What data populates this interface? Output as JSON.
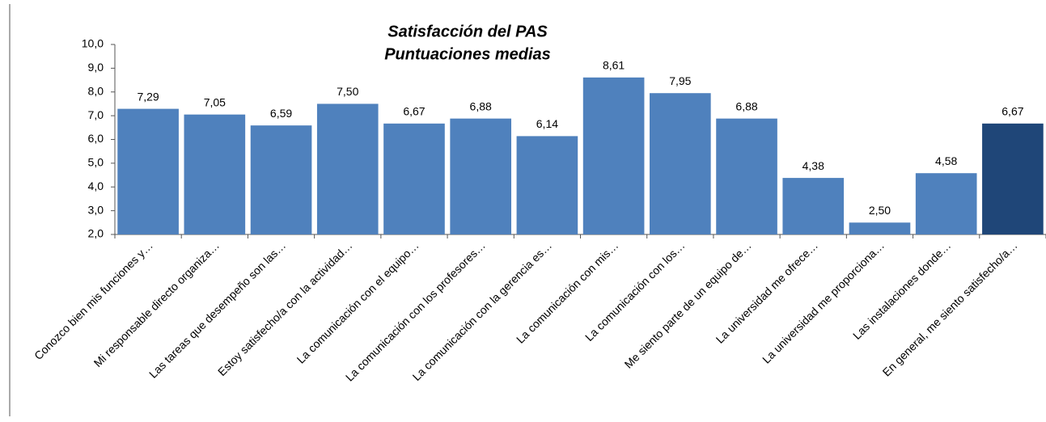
{
  "chart_data": {
    "type": "bar",
    "title": "Satisfacción del PAS",
    "subtitle": "Puntuaciones medias",
    "categories": [
      "Conozco bien mis funciones y…",
      "Mi responsable directo organiza…",
      "Las tareas que desempeño son las…",
      "Estoy satisfecho/a con la actividad…",
      "La comunicación con el equipo…",
      "La comunicación con los profesores…",
      "La comunicación con la gerencia es…",
      "La comunicación con mis…",
      "La comunicación con los…",
      "Me siento parte de un equipo de…",
      "La universidad me ofrece…",
      "La universidad me proporciona…",
      "Las instalaciones donde…",
      "En general, me siento satisfecho/a…"
    ],
    "values": [
      7.29,
      7.05,
      6.59,
      7.5,
      6.67,
      6.88,
      6.14,
      8.61,
      7.95,
      6.88,
      4.38,
      2.5,
      4.58,
      6.67
    ],
    "value_labels": [
      "7,29",
      "7,05",
      "6,59",
      "7,50",
      "6,67",
      "6,88",
      "6,14",
      "8,61",
      "7,95",
      "6,88",
      "4,38",
      "2,50",
      "4,58",
      "6,67"
    ],
    "colors": [
      "#4f81bd",
      "#4f81bd",
      "#4f81bd",
      "#4f81bd",
      "#4f81bd",
      "#4f81bd",
      "#4f81bd",
      "#4f81bd",
      "#4f81bd",
      "#4f81bd",
      "#4f81bd",
      "#4f81bd",
      "#4f81bd",
      "#1f4678"
    ],
    "ylim": [
      2,
      10
    ],
    "yticks": [
      {
        "value": 2,
        "label": "2,0"
      },
      {
        "value": 3,
        "label": "3,0"
      },
      {
        "value": 4,
        "label": "4,0"
      },
      {
        "value": 5,
        "label": "5,0"
      },
      {
        "value": 6,
        "label": "6,0"
      },
      {
        "value": 7,
        "label": "7,0"
      },
      {
        "value": 8,
        "label": "8,0"
      },
      {
        "value": 9,
        "label": "9,0"
      },
      {
        "value": 10,
        "label": "10,0"
      }
    ],
    "grid": false
  }
}
